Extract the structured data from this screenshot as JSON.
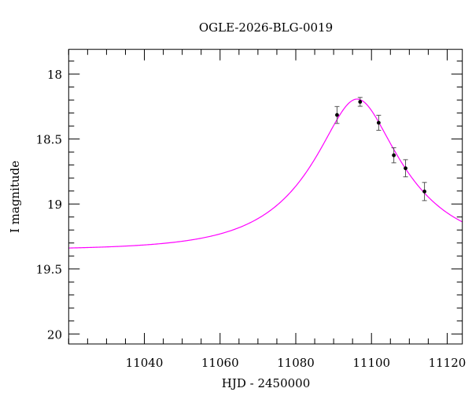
{
  "chart_data": {
    "type": "scatter",
    "title": "OGLE-2026-BLG-0019",
    "xlabel": "HJD - 2450000",
    "ylabel": "I magnitude",
    "xlim": [
      11020,
      11124
    ],
    "ylim": [
      17.81,
      20.077
    ],
    "y_inverted": true,
    "grid": false,
    "xticks": [
      11040,
      11060,
      11080,
      11100,
      11120
    ],
    "xtick_labels": [
      "11040",
      "11060",
      "11080",
      "11100",
      "11120"
    ],
    "x_minor_step": 5,
    "yticks": [
      18,
      18.5,
      19,
      19.5,
      20
    ],
    "ytick_labels": [
      "18",
      "18.5",
      "19",
      "19.5",
      "20"
    ],
    "y_minor_step": 0.1,
    "points": [
      {
        "x": 11090.9,
        "y": 18.315,
        "err": 0.065
      },
      {
        "x": 11097.0,
        "y": 18.214,
        "err": 0.034
      },
      {
        "x": 11101.9,
        "y": 18.375,
        "err": 0.058
      },
      {
        "x": 11105.9,
        "y": 18.625,
        "err": 0.058
      },
      {
        "x": 11109.0,
        "y": 18.725,
        "err": 0.066
      },
      {
        "x": 11114.0,
        "y": 18.904,
        "err": 0.07
      }
    ],
    "model": {
      "type": "point-lens",
      "t0": 11096.2,
      "u0": 0.36,
      "tE": 23.8,
      "baseline_mag": 19.353
    },
    "colors": {
      "model": "#ff00ff",
      "points": "#000000",
      "errorbars": "#555555"
    }
  }
}
